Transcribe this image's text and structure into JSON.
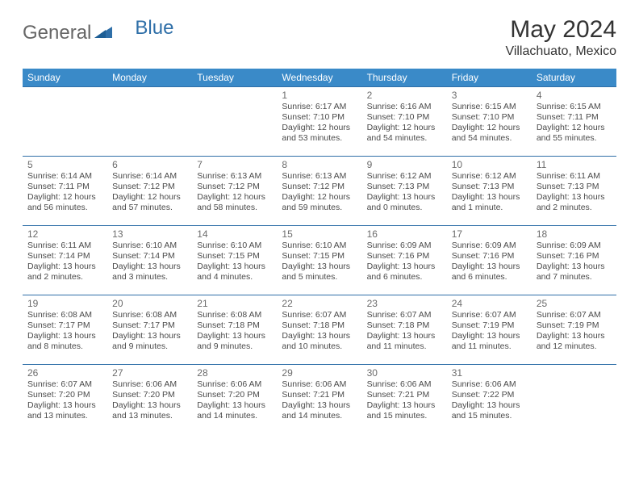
{
  "brand": {
    "part1": "General",
    "part2": "Blue"
  },
  "title": "May 2024",
  "location": "Villachuato, Mexico",
  "colors": {
    "header_bg": "#3a8ac8",
    "header_text": "#ffffff",
    "cell_border": "#2f6fa8",
    "text": "#4a4a4a",
    "daynum": "#6b6b6b",
    "logo_blue": "#2f6fa8"
  },
  "typography": {
    "title_fontsize": 30,
    "location_fontsize": 16,
    "header_fontsize": 12,
    "daynum_fontsize": 12,
    "info_fontsize": 10.5
  },
  "day_headers": [
    "Sunday",
    "Monday",
    "Tuesday",
    "Wednesday",
    "Thursday",
    "Friday",
    "Saturday"
  ],
  "weeks": [
    [
      null,
      null,
      null,
      {
        "d": "1",
        "sr": "Sunrise: 6:17 AM",
        "ss": "Sunset: 7:10 PM",
        "dl": "Daylight: 12 hours and 53 minutes."
      },
      {
        "d": "2",
        "sr": "Sunrise: 6:16 AM",
        "ss": "Sunset: 7:10 PM",
        "dl": "Daylight: 12 hours and 54 minutes."
      },
      {
        "d": "3",
        "sr": "Sunrise: 6:15 AM",
        "ss": "Sunset: 7:10 PM",
        "dl": "Daylight: 12 hours and 54 minutes."
      },
      {
        "d": "4",
        "sr": "Sunrise: 6:15 AM",
        "ss": "Sunset: 7:11 PM",
        "dl": "Daylight: 12 hours and 55 minutes."
      }
    ],
    [
      {
        "d": "5",
        "sr": "Sunrise: 6:14 AM",
        "ss": "Sunset: 7:11 PM",
        "dl": "Daylight: 12 hours and 56 minutes."
      },
      {
        "d": "6",
        "sr": "Sunrise: 6:14 AM",
        "ss": "Sunset: 7:12 PM",
        "dl": "Daylight: 12 hours and 57 minutes."
      },
      {
        "d": "7",
        "sr": "Sunrise: 6:13 AM",
        "ss": "Sunset: 7:12 PM",
        "dl": "Daylight: 12 hours and 58 minutes."
      },
      {
        "d": "8",
        "sr": "Sunrise: 6:13 AM",
        "ss": "Sunset: 7:12 PM",
        "dl": "Daylight: 12 hours and 59 minutes."
      },
      {
        "d": "9",
        "sr": "Sunrise: 6:12 AM",
        "ss": "Sunset: 7:13 PM",
        "dl": "Daylight: 13 hours and 0 minutes."
      },
      {
        "d": "10",
        "sr": "Sunrise: 6:12 AM",
        "ss": "Sunset: 7:13 PM",
        "dl": "Daylight: 13 hours and 1 minute."
      },
      {
        "d": "11",
        "sr": "Sunrise: 6:11 AM",
        "ss": "Sunset: 7:13 PM",
        "dl": "Daylight: 13 hours and 2 minutes."
      }
    ],
    [
      {
        "d": "12",
        "sr": "Sunrise: 6:11 AM",
        "ss": "Sunset: 7:14 PM",
        "dl": "Daylight: 13 hours and 2 minutes."
      },
      {
        "d": "13",
        "sr": "Sunrise: 6:10 AM",
        "ss": "Sunset: 7:14 PM",
        "dl": "Daylight: 13 hours and 3 minutes."
      },
      {
        "d": "14",
        "sr": "Sunrise: 6:10 AM",
        "ss": "Sunset: 7:15 PM",
        "dl": "Daylight: 13 hours and 4 minutes."
      },
      {
        "d": "15",
        "sr": "Sunrise: 6:10 AM",
        "ss": "Sunset: 7:15 PM",
        "dl": "Daylight: 13 hours and 5 minutes."
      },
      {
        "d": "16",
        "sr": "Sunrise: 6:09 AM",
        "ss": "Sunset: 7:16 PM",
        "dl": "Daylight: 13 hours and 6 minutes."
      },
      {
        "d": "17",
        "sr": "Sunrise: 6:09 AM",
        "ss": "Sunset: 7:16 PM",
        "dl": "Daylight: 13 hours and 6 minutes."
      },
      {
        "d": "18",
        "sr": "Sunrise: 6:09 AM",
        "ss": "Sunset: 7:16 PM",
        "dl": "Daylight: 13 hours and 7 minutes."
      }
    ],
    [
      {
        "d": "19",
        "sr": "Sunrise: 6:08 AM",
        "ss": "Sunset: 7:17 PM",
        "dl": "Daylight: 13 hours and 8 minutes."
      },
      {
        "d": "20",
        "sr": "Sunrise: 6:08 AM",
        "ss": "Sunset: 7:17 PM",
        "dl": "Daylight: 13 hours and 9 minutes."
      },
      {
        "d": "21",
        "sr": "Sunrise: 6:08 AM",
        "ss": "Sunset: 7:18 PM",
        "dl": "Daylight: 13 hours and 9 minutes."
      },
      {
        "d": "22",
        "sr": "Sunrise: 6:07 AM",
        "ss": "Sunset: 7:18 PM",
        "dl": "Daylight: 13 hours and 10 minutes."
      },
      {
        "d": "23",
        "sr": "Sunrise: 6:07 AM",
        "ss": "Sunset: 7:18 PM",
        "dl": "Daylight: 13 hours and 11 minutes."
      },
      {
        "d": "24",
        "sr": "Sunrise: 6:07 AM",
        "ss": "Sunset: 7:19 PM",
        "dl": "Daylight: 13 hours and 11 minutes."
      },
      {
        "d": "25",
        "sr": "Sunrise: 6:07 AM",
        "ss": "Sunset: 7:19 PM",
        "dl": "Daylight: 13 hours and 12 minutes."
      }
    ],
    [
      {
        "d": "26",
        "sr": "Sunrise: 6:07 AM",
        "ss": "Sunset: 7:20 PM",
        "dl": "Daylight: 13 hours and 13 minutes."
      },
      {
        "d": "27",
        "sr": "Sunrise: 6:06 AM",
        "ss": "Sunset: 7:20 PM",
        "dl": "Daylight: 13 hours and 13 minutes."
      },
      {
        "d": "28",
        "sr": "Sunrise: 6:06 AM",
        "ss": "Sunset: 7:20 PM",
        "dl": "Daylight: 13 hours and 14 minutes."
      },
      {
        "d": "29",
        "sr": "Sunrise: 6:06 AM",
        "ss": "Sunset: 7:21 PM",
        "dl": "Daylight: 13 hours and 14 minutes."
      },
      {
        "d": "30",
        "sr": "Sunrise: 6:06 AM",
        "ss": "Sunset: 7:21 PM",
        "dl": "Daylight: 13 hours and 15 minutes."
      },
      {
        "d": "31",
        "sr": "Sunrise: 6:06 AM",
        "ss": "Sunset: 7:22 PM",
        "dl": "Daylight: 13 hours and 15 minutes."
      },
      null
    ]
  ]
}
